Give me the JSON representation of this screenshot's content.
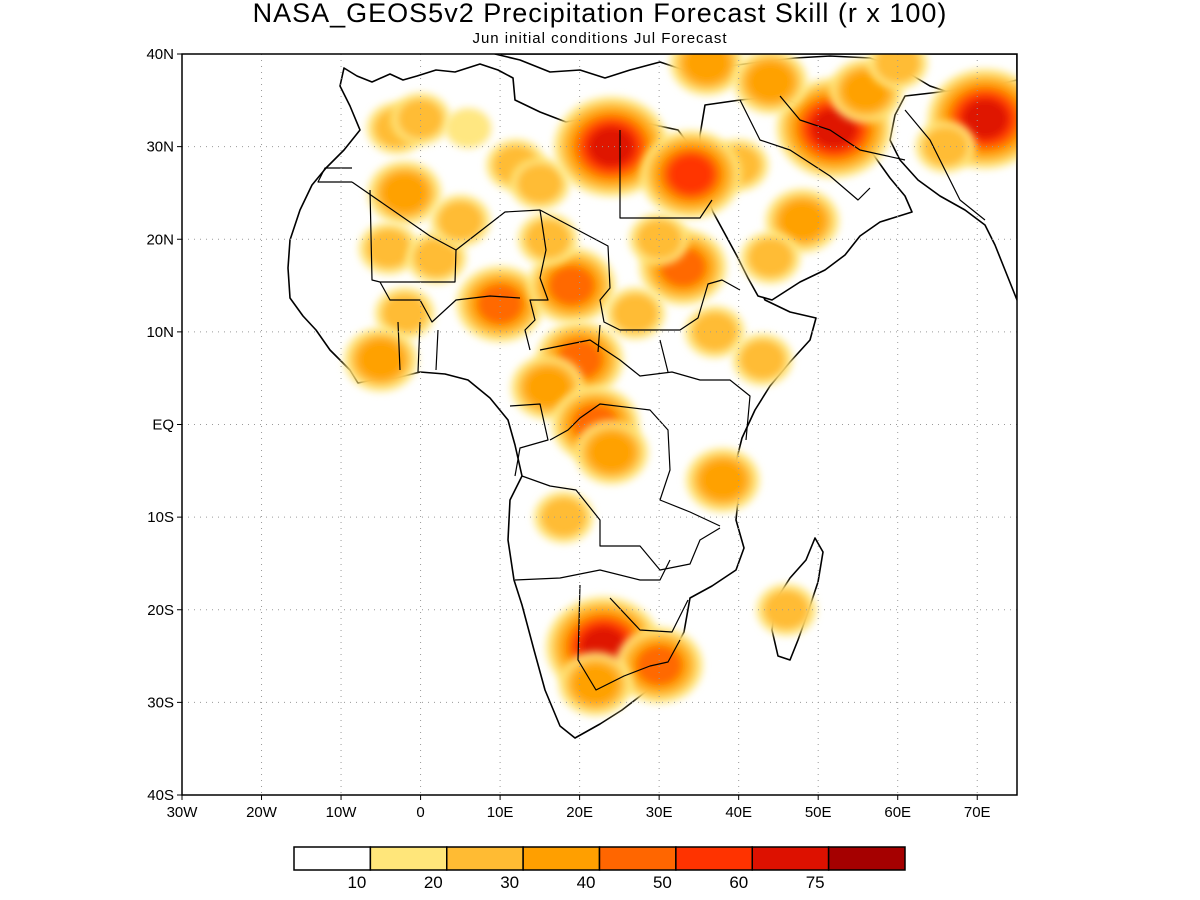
{
  "title": "NASA_GEOS5v2 Precipitation Forecast Skill (r x 100)",
  "subtitle": "Jun initial conditions  Jul Forecast",
  "chart_data": {
    "type": "heatmap",
    "title": "NASA_GEOS5v2 Precipitation Forecast Skill (r x 100)",
    "subtitle": "Jun initial conditions  Jul Forecast",
    "xlim": [
      -30,
      75
    ],
    "ylim": [
      -40,
      40
    ],
    "x_ticks": [
      {
        "value": -30,
        "label": "30W"
      },
      {
        "value": -20,
        "label": "20W"
      },
      {
        "value": -10,
        "label": "10W"
      },
      {
        "value": 0,
        "label": "0"
      },
      {
        "value": 10,
        "label": "10E"
      },
      {
        "value": 20,
        "label": "20E"
      },
      {
        "value": 30,
        "label": "30E"
      },
      {
        "value": 40,
        "label": "40E"
      },
      {
        "value": 50,
        "label": "50E"
      },
      {
        "value": 60,
        "label": "60E"
      },
      {
        "value": 70,
        "label": "70E"
      }
    ],
    "y_ticks": [
      {
        "value": 40,
        "label": "40N"
      },
      {
        "value": 30,
        "label": "30N"
      },
      {
        "value": 20,
        "label": "20N"
      },
      {
        "value": 10,
        "label": "10N"
      },
      {
        "value": 0,
        "label": "EQ"
      },
      {
        "value": -10,
        "label": "10S"
      },
      {
        "value": -20,
        "label": "20S"
      },
      {
        "value": -30,
        "label": "30S"
      },
      {
        "value": -40,
        "label": "40S"
      }
    ],
    "grid": true,
    "colorbar": {
      "placement": "bottom",
      "labels": [
        "10",
        "20",
        "30",
        "40",
        "50",
        "60",
        "75"
      ],
      "bins": [
        {
          "color": "#ffffff"
        },
        {
          "color": "#ffe67a"
        },
        {
          "color": "#ffbb33"
        },
        {
          "color": "#ff9f00"
        },
        {
          "color": "#ff6600"
        },
        {
          "color": "#ff3300"
        },
        {
          "color": "#dd1100"
        },
        {
          "color": "#a50000"
        }
      ]
    },
    "regions": [
      {
        "lon": -3,
        "lat": 32,
        "value": 25
      },
      {
        "lon": -2,
        "lat": 25,
        "value": 35
      },
      {
        "lon": -4,
        "lat": 19,
        "value": 25
      },
      {
        "lon": 2,
        "lat": 18,
        "value": 20
      },
      {
        "lon": -2,
        "lat": 12,
        "value": 25
      },
      {
        "lon": -5,
        "lat": 7,
        "value": 35
      },
      {
        "lon": 0,
        "lat": 33,
        "value": 20
      },
      {
        "lon": 6,
        "lat": 32,
        "value": 15
      },
      {
        "lon": 12,
        "lat": 28,
        "value": 25
      },
      {
        "lon": 15,
        "lat": 26,
        "value": 25
      },
      {
        "lon": 5,
        "lat": 22,
        "value": 25
      },
      {
        "lon": 10,
        "lat": 13,
        "value": 40
      },
      {
        "lon": 19,
        "lat": 15,
        "value": 45
      },
      {
        "lon": 16,
        "lat": 20,
        "value": 20
      },
      {
        "lon": 33,
        "lat": 17,
        "value": 40
      },
      {
        "lon": 30,
        "lat": 20,
        "value": 25
      },
      {
        "lon": 27,
        "lat": 12,
        "value": 25
      },
      {
        "lon": 37,
        "lat": 10,
        "value": 25
      },
      {
        "lon": 20,
        "lat": 7,
        "value": 45
      },
      {
        "lon": 16,
        "lat": 4,
        "value": 30
      },
      {
        "lon": 22,
        "lat": 0,
        "value": 40
      },
      {
        "lon": 24,
        "lat": -3,
        "value": 35
      },
      {
        "lon": 43,
        "lat": 7,
        "value": 25
      },
      {
        "lon": 38,
        "lat": -6,
        "value": 30
      },
      {
        "lon": 18,
        "lat": -10,
        "value": 25
      },
      {
        "lon": 23,
        "lat": -24,
        "value": 60
      },
      {
        "lon": 30,
        "lat": -26,
        "value": 45
      },
      {
        "lon": 22,
        "lat": -28,
        "value": 30
      },
      {
        "lon": 46,
        "lat": -20,
        "value": 25
      },
      {
        "lon": 52,
        "lat": 32,
        "value": 60
      },
      {
        "lon": 56,
        "lat": 36,
        "value": 30
      },
      {
        "lon": 60,
        "lat": 39,
        "value": 25
      },
      {
        "lon": 71,
        "lat": 33,
        "value": 60
      },
      {
        "lon": 66,
        "lat": 30,
        "value": 25
      },
      {
        "lon": 48,
        "lat": 22,
        "value": 35
      },
      {
        "lon": 44,
        "lat": 18,
        "value": 20
      },
      {
        "lon": 40,
        "lat": 28,
        "value": 20
      },
      {
        "lon": 24,
        "lat": 30,
        "value": 60
      },
      {
        "lon": 34,
        "lat": 27,
        "value": 50
      },
      {
        "lon": 36,
        "lat": 39,
        "value": 35
      },
      {
        "lon": 44,
        "lat": 37,
        "value": 30
      }
    ]
  }
}
